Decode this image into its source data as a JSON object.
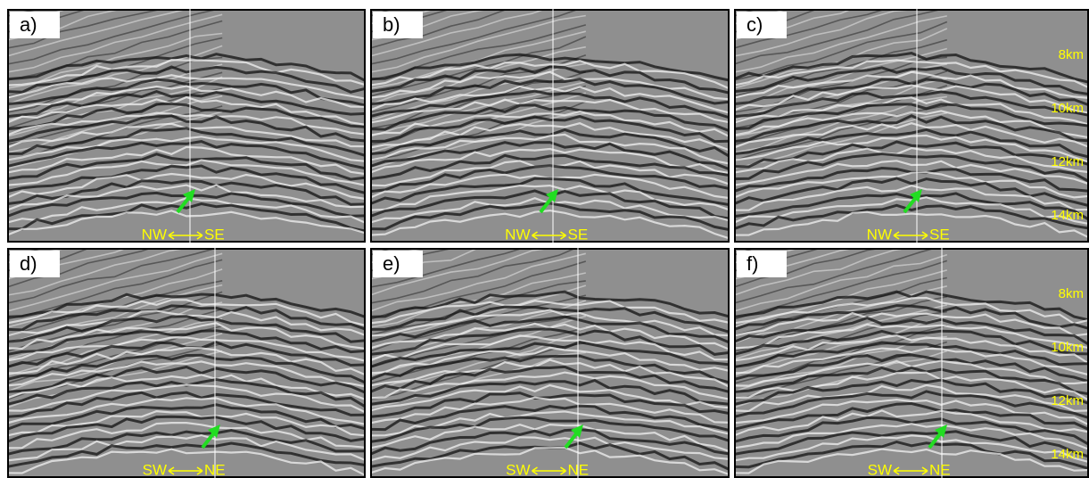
{
  "panels": [
    {
      "label": "a)",
      "direction": [
        "NW",
        "SE"
      ]
    },
    {
      "label": "b)",
      "direction": [
        "NW",
        "SE"
      ]
    },
    {
      "label": "c)",
      "direction": [
        "NW",
        "SE"
      ],
      "depth": [
        "8km",
        "10km",
        "12km",
        "14km"
      ]
    },
    {
      "label": "d)",
      "direction": [
        "SW",
        "NE"
      ]
    },
    {
      "label": "e)",
      "direction": [
        "SW",
        "NE"
      ]
    },
    {
      "label": "f)",
      "direction": [
        "SW",
        "NE"
      ],
      "depth": [
        "8km",
        "10km",
        "12km",
        "14km"
      ]
    }
  ]
}
